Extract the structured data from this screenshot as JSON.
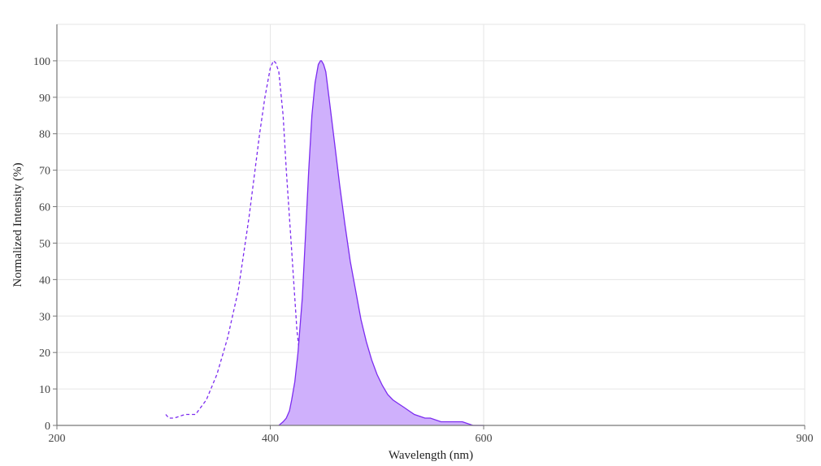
{
  "chart_data": {
    "type": "area",
    "title": "",
    "xlabel": "Wavelength (nm)",
    "ylabel": "Normalized Intensity (%)",
    "xlim": [
      200,
      900
    ],
    "ylim": [
      0,
      110
    ],
    "xticks": [
      200,
      400,
      600,
      900
    ],
    "yticks": [
      0,
      10,
      20,
      30,
      40,
      50,
      60,
      70,
      80,
      90,
      100
    ],
    "grid": true,
    "legend": "none",
    "series": [
      {
        "style": "dashed-line",
        "color": "#7c2cf0",
        "x": [
          302,
          305,
          310,
          320,
          330,
          335,
          340,
          350,
          360,
          370,
          380,
          390,
          395,
          400,
          403,
          405,
          408,
          412,
          415,
          420,
          425,
          430,
          435,
          440,
          445,
          450
        ],
        "y": [
          3,
          2,
          2,
          3,
          3,
          5,
          7,
          14,
          24,
          37,
          57,
          80,
          90,
          98,
          100,
          99.5,
          97,
          85,
          70,
          48,
          26,
          13,
          7,
          3,
          2,
          1.5
        ]
      },
      {
        "style": "filled-area",
        "color": "#7c2cf0",
        "fill": "#cfb0fc",
        "x": [
          408,
          412,
          415,
          418,
          420,
          423,
          426,
          430,
          433,
          436,
          439,
          442,
          445,
          447,
          448,
          450,
          452,
          455,
          460,
          465,
          470,
          475,
          480,
          485,
          490,
          495,
          500,
          505,
          510,
          515,
          520,
          525,
          530,
          535,
          540,
          545,
          550,
          560,
          570,
          580,
          590,
          600
        ],
        "y": [
          0,
          1,
          2,
          4,
          7,
          12,
          20,
          35,
          52,
          70,
          85,
          94,
          99,
          100,
          100,
          99,
          97,
          90,
          78,
          66,
          55,
          45,
          37,
          29,
          23,
          18,
          14,
          11,
          8.5,
          7,
          6,
          5,
          4,
          3,
          2.5,
          2,
          2,
          1,
          1,
          1,
          0,
          0
        ]
      }
    ]
  }
}
